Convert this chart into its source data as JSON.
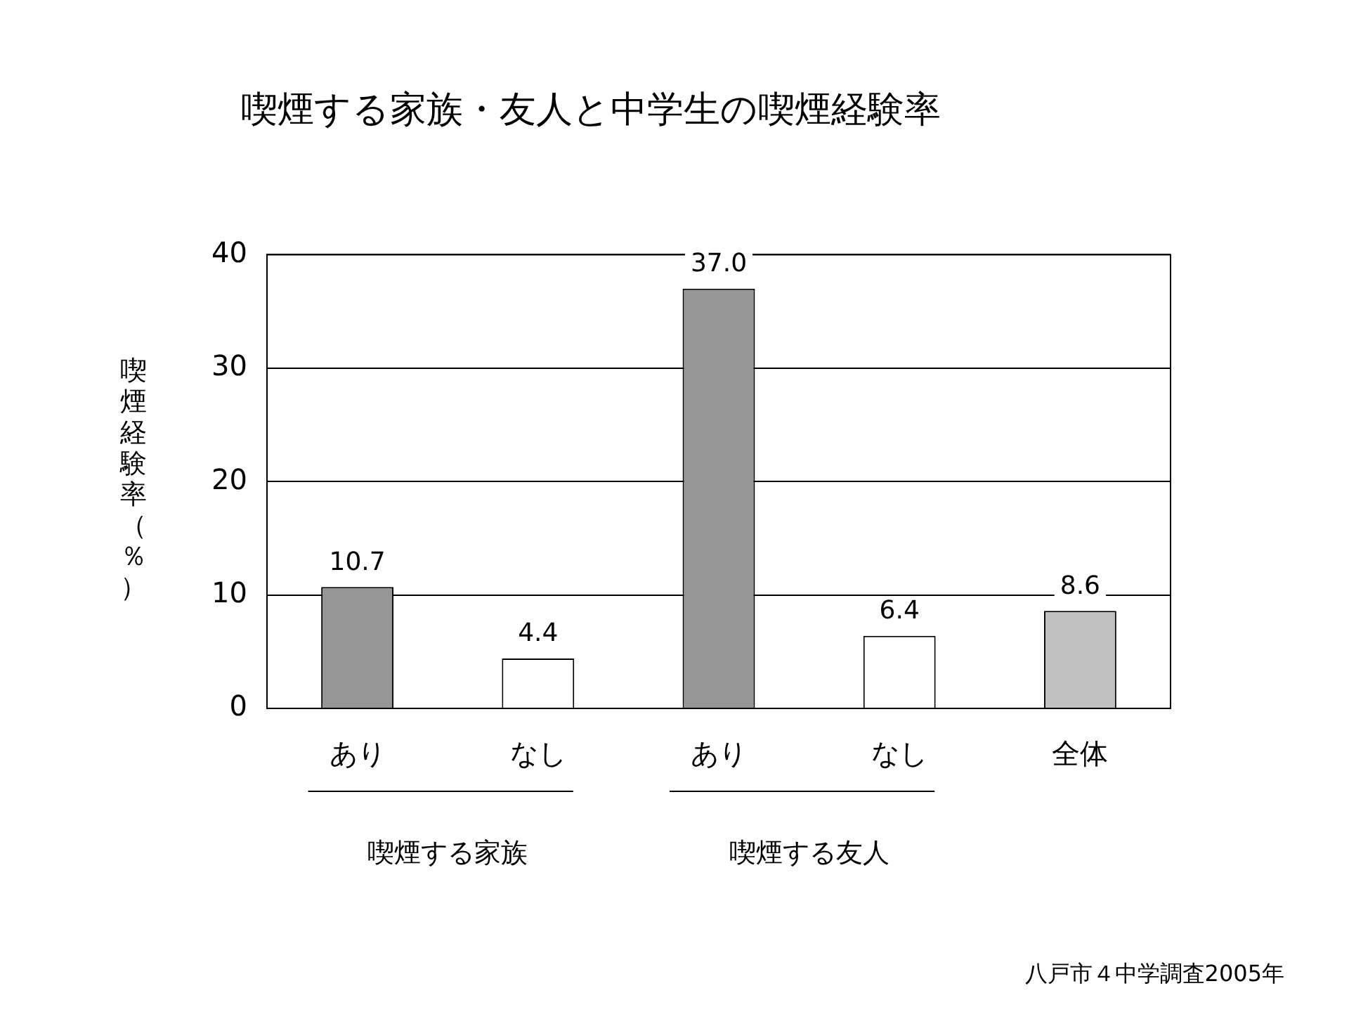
{
  "chart_data": {
    "type": "bar",
    "title": "喫煙する家族・友人と中学生の喫煙経験率",
    "ylabel": "喫煙経験率（％）",
    "categories": [
      "あり",
      "なし",
      "あり",
      "なし",
      "全体"
    ],
    "values": [
      10.7,
      4.4,
      37.0,
      6.4,
      8.6
    ],
    "colors": [
      "#969696",
      "#ffffff",
      "#969696",
      "#ffffff",
      "#c0c0c0"
    ],
    "value_labels": [
      "10.7",
      "4.4",
      "37.0",
      "6.4",
      "8.6"
    ],
    "ylim": [
      0,
      40
    ],
    "yticks": [
      0,
      10,
      20,
      30,
      40
    ],
    "grid": "y",
    "legend": false,
    "annotations": [
      "喫煙する家族",
      "喫煙する友人",
      "八戸市４中学調査2005年"
    ]
  }
}
